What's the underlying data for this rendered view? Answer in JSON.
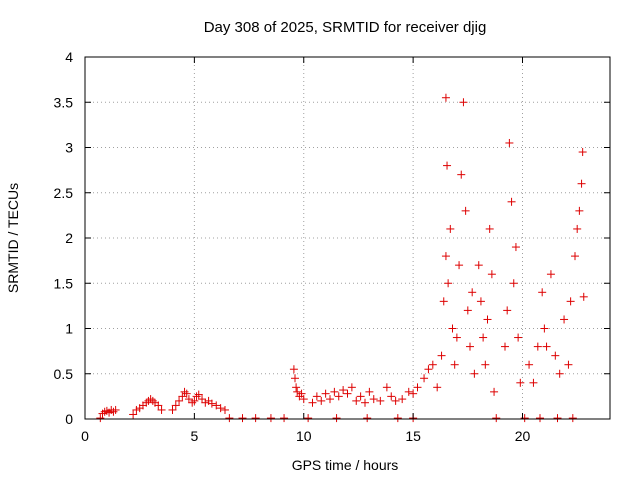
{
  "chart_data": {
    "type": "scatter",
    "title": "Day 308 of 2025, SRMTID for receiver djig",
    "xlabel": "GPS time / hours",
    "ylabel": "SRMTID / TECUs",
    "xlim": [
      0,
      24
    ],
    "ylim": [
      0,
      4
    ],
    "xticks": [
      0,
      5,
      10,
      15,
      20
    ],
    "xtick_labels": [
      "0",
      "5",
      "10",
      "15",
      "20"
    ],
    "yticks": [
      0,
      0.5,
      1,
      1.5,
      2,
      2.5,
      3,
      3.5,
      4
    ],
    "ytick_labels": [
      "0",
      "0.5",
      "1",
      "1.5",
      "2",
      "2.5",
      "3",
      "3.5",
      "4"
    ],
    "grid": true,
    "marker": "+",
    "colors": {
      "marker": "#dd0000",
      "grid": "#a0a0a0",
      "axis": "#000000"
    },
    "series": [
      {
        "name": "SRMTID",
        "points": [
          [
            0.7,
            0.01
          ],
          [
            0.8,
            0.06
          ],
          [
            0.9,
            0.08
          ],
          [
            1.0,
            0.09
          ],
          [
            1.1,
            0.07
          ],
          [
            1.2,
            0.1
          ],
          [
            1.3,
            0.08
          ],
          [
            1.4,
            0.1
          ],
          [
            2.2,
            0.05
          ],
          [
            2.35,
            0.1
          ],
          [
            2.5,
            0.12
          ],
          [
            2.65,
            0.15
          ],
          [
            2.8,
            0.18
          ],
          [
            2.9,
            0.2
          ],
          [
            3.0,
            0.22
          ],
          [
            3.1,
            0.2
          ],
          [
            3.2,
            0.18
          ],
          [
            3.35,
            0.15
          ],
          [
            3.5,
            0.1
          ],
          [
            4.0,
            0.1
          ],
          [
            4.15,
            0.15
          ],
          [
            4.3,
            0.2
          ],
          [
            4.45,
            0.25
          ],
          [
            4.55,
            0.3
          ],
          [
            4.65,
            0.28
          ],
          [
            4.75,
            0.22
          ],
          [
            4.9,
            0.18
          ],
          [
            5.0,
            0.2
          ],
          [
            5.1,
            0.25
          ],
          [
            5.2,
            0.27
          ],
          [
            5.35,
            0.22
          ],
          [
            5.5,
            0.18
          ],
          [
            5.65,
            0.2
          ],
          [
            5.8,
            0.17
          ],
          [
            6.0,
            0.15
          ],
          [
            6.2,
            0.12
          ],
          [
            6.4,
            0.1
          ],
          [
            6.6,
            0.01
          ],
          [
            7.2,
            0.01
          ],
          [
            7.8,
            0.01
          ],
          [
            8.5,
            0.01
          ],
          [
            9.1,
            0.01
          ],
          [
            9.55,
            0.55
          ],
          [
            9.6,
            0.45
          ],
          [
            9.65,
            0.35
          ],
          [
            9.7,
            0.3
          ],
          [
            9.8,
            0.25
          ],
          [
            9.9,
            0.28
          ],
          [
            10.0,
            0.22
          ],
          [
            10.4,
            0.18
          ],
          [
            10.6,
            0.25
          ],
          [
            10.8,
            0.2
          ],
          [
            11.0,
            0.28
          ],
          [
            11.2,
            0.22
          ],
          [
            11.4,
            0.3
          ],
          [
            11.6,
            0.25
          ],
          [
            11.8,
            0.32
          ],
          [
            12.0,
            0.28
          ],
          [
            12.2,
            0.35
          ],
          [
            12.4,
            0.2
          ],
          [
            12.6,
            0.25
          ],
          [
            12.8,
            0.18
          ],
          [
            13.0,
            0.3
          ],
          [
            13.2,
            0.22
          ],
          [
            13.5,
            0.2
          ],
          [
            13.8,
            0.35
          ],
          [
            14.0,
            0.25
          ],
          [
            14.2,
            0.2
          ],
          [
            14.5,
            0.22
          ],
          [
            14.8,
            0.3
          ],
          [
            15.0,
            0.28
          ],
          [
            15.2,
            0.35
          ],
          [
            15.5,
            0.45
          ],
          [
            15.7,
            0.55
          ],
          [
            15.9,
            0.6
          ],
          [
            16.1,
            0.35
          ],
          [
            10.2,
            0.01
          ],
          [
            11.5,
            0.01
          ],
          [
            12.9,
            0.01
          ],
          [
            14.3,
            0.01
          ],
          [
            15.0,
            0.01
          ],
          [
            16.3,
            0.7
          ],
          [
            16.4,
            1.3
          ],
          [
            16.5,
            1.8
          ],
          [
            16.5,
            3.55
          ],
          [
            16.55,
            2.8
          ],
          [
            16.6,
            1.5
          ],
          [
            16.7,
            2.1
          ],
          [
            16.8,
            1.0
          ],
          [
            16.9,
            0.6
          ],
          [
            17.0,
            0.9
          ],
          [
            17.1,
            1.7
          ],
          [
            17.2,
            2.7
          ],
          [
            17.3,
            3.5
          ],
          [
            17.4,
            2.3
          ],
          [
            17.5,
            1.2
          ],
          [
            17.6,
            0.8
          ],
          [
            17.7,
            1.4
          ],
          [
            17.8,
            0.5
          ],
          [
            18.0,
            1.7
          ],
          [
            18.1,
            1.3
          ],
          [
            18.2,
            0.9
          ],
          [
            18.3,
            0.6
          ],
          [
            18.4,
            1.1
          ],
          [
            18.5,
            2.1
          ],
          [
            18.6,
            1.6
          ],
          [
            18.7,
            0.3
          ],
          [
            18.8,
            0.01
          ],
          [
            19.2,
            0.8
          ],
          [
            19.3,
            1.2
          ],
          [
            19.4,
            3.05
          ],
          [
            19.5,
            2.4
          ],
          [
            19.6,
            1.5
          ],
          [
            19.7,
            1.9
          ],
          [
            19.8,
            0.9
          ],
          [
            19.9,
            0.4
          ],
          [
            20.3,
            0.6
          ],
          [
            20.5,
            0.4
          ],
          [
            20.7,
            0.8
          ],
          [
            20.9,
            1.4
          ],
          [
            21.0,
            1.0
          ],
          [
            21.1,
            0.8
          ],
          [
            21.3,
            1.6
          ],
          [
            21.5,
            0.7
          ],
          [
            21.7,
            0.5
          ],
          [
            21.9,
            1.1
          ],
          [
            22.1,
            0.6
          ],
          [
            22.2,
            1.3
          ],
          [
            22.4,
            1.8
          ],
          [
            22.5,
            2.1
          ],
          [
            22.6,
            2.3
          ],
          [
            22.7,
            2.6
          ],
          [
            22.75,
            2.95
          ],
          [
            22.8,
            1.35
          ],
          [
            20.1,
            0.01
          ],
          [
            20.8,
            0.01
          ],
          [
            21.6,
            0.01
          ],
          [
            22.3,
            0.01
          ]
        ]
      }
    ]
  }
}
